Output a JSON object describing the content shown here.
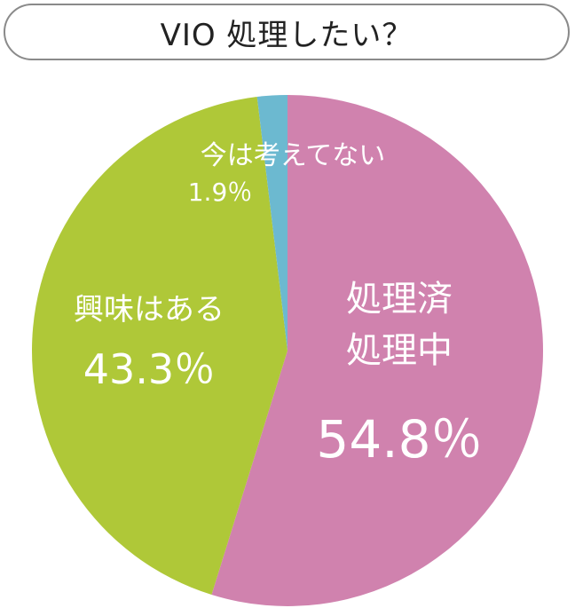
{
  "chart_data": {
    "type": "pie",
    "title": "VIO 処理したい？",
    "start": "top",
    "direction": "clockwise",
    "slices": [
      {
        "label": [
          "処理済",
          "処理中"
        ],
        "value": 54.8,
        "value_label": "54.8％",
        "color": "#d082ae"
      },
      {
        "label": [
          "興味はある"
        ],
        "value": 43.3,
        "value_label": "43.3％",
        "color": "#afc838"
      },
      {
        "label": [
          "今は考えてない"
        ],
        "value": 1.9,
        "value_label": "1.9％",
        "color": "#6cb9d0"
      }
    ]
  }
}
